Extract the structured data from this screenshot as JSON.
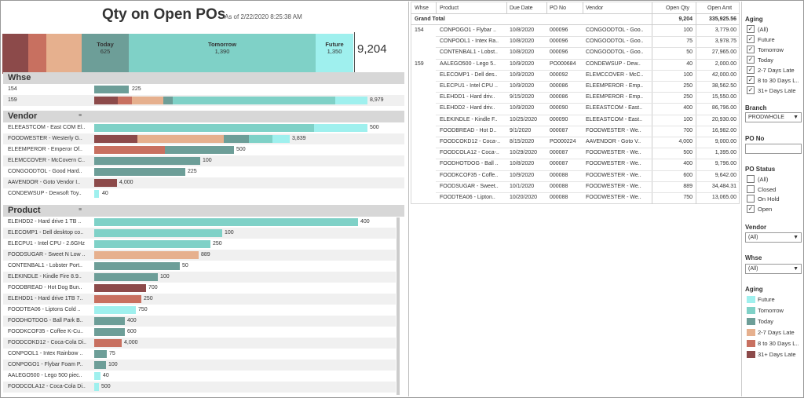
{
  "header": {
    "title": "Qty on Open POs",
    "as_of": "As of 2/22/2020 8:25:38 AM",
    "total": "9,204"
  },
  "aging_bar": [
    {
      "key": "31+",
      "color": "#8c4a4a",
      "label": "",
      "value": ""
    },
    {
      "key": "8-30",
      "color": "#c87060",
      "label": "",
      "value": ""
    },
    {
      "key": "2-7",
      "color": "#e6b08e",
      "label": "",
      "value": ""
    },
    {
      "key": "today",
      "color": "#6d9e98",
      "label": "Today",
      "value": "625"
    },
    {
      "key": "tomorrow",
      "color": "#7fd1c7",
      "label": "Tomorrow",
      "value": "1,390"
    },
    {
      "key": "future",
      "color": "#9ff0ee",
      "label": "Future",
      "value": "1,350"
    }
  ],
  "whse": {
    "title": "Whse",
    "rows": [
      {
        "name": "154",
        "value": "225"
      },
      {
        "name": "159",
        "value": "8,979"
      }
    ]
  },
  "vendor": {
    "title": "Vendor",
    "rows": [
      {
        "name": "ELEEASTCOM - East COM El..",
        "value": "500"
      },
      {
        "name": "FOODWESTER - Westerly G..",
        "value": "3,839"
      },
      {
        "name": "ELEEMPEROR - Emperor Of..",
        "value": "500"
      },
      {
        "name": "ELEMCCOVER - McCovern C..",
        "value": "100"
      },
      {
        "name": "CONGOODTOL - Good Hard..",
        "value": "225"
      },
      {
        "name": "AAVENDOR - Goto Vendor I..",
        "value": "4,000"
      },
      {
        "name": "CONDEWSUP - Dewsoft Toy..",
        "value": "40"
      }
    ]
  },
  "product": {
    "title": "Product",
    "rows": [
      {
        "name": "ELEHDD2 - Hard drive 1 TB ..",
        "value": "400"
      },
      {
        "name": "ELECOMP1 - Dell desktop co..",
        "value": "100"
      },
      {
        "name": "ELECPU1 - Intel CPU - 2.6GHz",
        "value": "250"
      },
      {
        "name": "FOODSUGAR - Sweet N Low ..",
        "value": "889"
      },
      {
        "name": "CONTENBAL1 - Lobster Port..",
        "value": "50"
      },
      {
        "name": "ELEKINDLE - Kindle Fire 8.9..",
        "value": "100"
      },
      {
        "name": "FOODBREAD - Hot Dog Bun..",
        "value": "700"
      },
      {
        "name": "ELEHDD1 - Hard drive 1TB 7..",
        "value": "250"
      },
      {
        "name": "FOODTEA06 - Liptons Cold ..",
        "value": "750"
      },
      {
        "name": "FOODHOTDOG - Ball Park B..",
        "value": "400"
      },
      {
        "name": "FOODKCOF35 - Coffee K-Cu..",
        "value": "600"
      },
      {
        "name": "FOODCOKD12 - Coca-Cola Di..",
        "value": "4,000"
      },
      {
        "name": "CONPOOL1 - Intex Rainbow ..",
        "value": "75"
      },
      {
        "name": "CONPOGO1 - Flybar Foam P..",
        "value": "100"
      },
      {
        "name": "AALEGO500 - Lego 500 piec..",
        "value": "40"
      },
      {
        "name": "FOODCOLA12 - Coca-Cola Di..",
        "value": "500"
      }
    ]
  },
  "table": {
    "headers": {
      "whse": "Whse",
      "product": "Product",
      "due": "Due Date",
      "po": "PO  No",
      "vendor": "Vendor",
      "qty": "Open Qty",
      "amt": "Open Amt"
    },
    "grand": {
      "label": "Grand Total",
      "qty": "9,204",
      "amt": "335,925.56"
    },
    "rows": [
      {
        "whse": "154",
        "product": "CONPOGO1 - Flybar ..",
        "due": "10/8/2020",
        "po": "000096",
        "vendor": "CONGOODTOL - Goo..",
        "qty": "100",
        "amt": "3,779.00"
      },
      {
        "whse": "",
        "product": "CONPOOL1 - Intex Ra..",
        "due": "10/8/2020",
        "po": "000096",
        "vendor": "CONGOODTOL - Goo..",
        "qty": "75",
        "amt": "3,978.75"
      },
      {
        "whse": "",
        "product": "CONTENBAL1 - Lobst..",
        "due": "10/8/2020",
        "po": "000096",
        "vendor": "CONGOODTOL - Goo..",
        "qty": "50",
        "amt": "27,965.00"
      },
      {
        "whse": "159",
        "product": "AALEGO500 - Lego 5..",
        "due": "10/9/2020",
        "po": "PO000684",
        "vendor": "CONDEWSUP - Dew..",
        "qty": "40",
        "amt": "2,000.00"
      },
      {
        "whse": "",
        "product": "ELECOMP1 - Dell des..",
        "due": "10/9/2020",
        "po": "000092",
        "vendor": "ELEMCCOVER - McC..",
        "qty": "100",
        "amt": "42,000.00"
      },
      {
        "whse": "",
        "product": "ELECPU1 - Intel CPU ..",
        "due": "10/9/2020",
        "po": "000086",
        "vendor": "ELEEMPEROR - Emp..",
        "qty": "250",
        "amt": "38,562.50"
      },
      {
        "whse": "",
        "product": "ELEHDD1 - Hard driv..",
        "due": "9/15/2020",
        "po": "000086",
        "vendor": "ELEEMPEROR - Emp..",
        "qty": "250",
        "amt": "15,550.00"
      },
      {
        "whse": "",
        "product": "ELEHDD2 - Hard driv..",
        "due": "10/9/2020",
        "po": "000090",
        "vendor": "ELEEASTCOM - East..",
        "qty": "400",
        "amt": "86,796.00"
      },
      {
        "whse": "",
        "product": "ELEKINDLE - Kindle F..",
        "due": "10/25/2020",
        "po": "000090",
        "vendor": "ELEEASTCOM - East..",
        "qty": "100",
        "amt": "20,930.00"
      },
      {
        "whse": "",
        "product": "FOODBREAD - Hot D..",
        "due": "9/1/2020",
        "po": "000087",
        "vendor": "FOODWESTER - We..",
        "qty": "700",
        "amt": "16,982.00"
      },
      {
        "whse": "",
        "product": "FOODCOKD12 - Coca-..",
        "due": "8/15/2020",
        "po": "PO000224",
        "vendor": "AAVENDOR - Goto V..",
        "qty": "4,000",
        "amt": "9,000.00"
      },
      {
        "whse": "",
        "product": "FOODCOLA12 - Coca-..",
        "due": "10/29/2020",
        "po": "000087",
        "vendor": "FOODWESTER - We..",
        "qty": "500",
        "amt": "1,395.00"
      },
      {
        "whse": "",
        "product": "FOODHOTDOG - Ball ..",
        "due": "10/8/2020",
        "po": "000087",
        "vendor": "FOODWESTER - We..",
        "qty": "400",
        "amt": "9,796.00"
      },
      {
        "whse": "",
        "product": "FOODKCOF35 - Coffe..",
        "due": "10/9/2020",
        "po": "000088",
        "vendor": "FOODWESTER - We..",
        "qty": "600",
        "amt": "9,642.00"
      },
      {
        "whse": "",
        "product": "FOODSUGAR - Sweet..",
        "due": "10/1/2020",
        "po": "000088",
        "vendor": "FOODWESTER - We..",
        "qty": "889",
        "amt": "34,484.31"
      },
      {
        "whse": "",
        "product": "FOODTEA06 - Lipton..",
        "due": "10/20/2020",
        "po": "000088",
        "vendor": "FOODWESTER - We..",
        "qty": "750",
        "amt": "13,065.00"
      }
    ]
  },
  "filters": {
    "aging_title": "Aging",
    "aging_items": [
      {
        "label": "(All)",
        "checked": "✓"
      },
      {
        "label": "Future",
        "checked": "✓"
      },
      {
        "label": "Tomorrow",
        "checked": "✓"
      },
      {
        "label": "Today",
        "checked": "✓"
      },
      {
        "label": "2-7 Days Late",
        "checked": "✓"
      },
      {
        "label": "8 to 30 Days L..",
        "checked": "✓"
      },
      {
        "label": "31+ Days Late",
        "checked": "✓"
      }
    ],
    "branch_title": "Branch",
    "branch_value": "PRODWHOLE",
    "pono_title": "PO  No",
    "pono_value": "",
    "status_title": "PO Status",
    "status_items": [
      {
        "label": "(All)",
        "checked": ""
      },
      {
        "label": "Closed",
        "checked": ""
      },
      {
        "label": "On Hold",
        "checked": ""
      },
      {
        "label": "Open",
        "checked": "✓"
      }
    ],
    "vendor_title": "Vendor",
    "vendor_value": "(All)",
    "whse_title": "Whse",
    "whse_value": "(All)",
    "legend_title": "Aging",
    "legend": [
      {
        "label": "Future",
        "color": "#9ff0ee"
      },
      {
        "label": "Tomorrow",
        "color": "#7fd1c7"
      },
      {
        "label": "Today",
        "color": "#6d9e98"
      },
      {
        "label": "2-7 Days Late",
        "color": "#e6b08e"
      },
      {
        "label": "8 to 30 Days L..",
        "color": "#c87060"
      },
      {
        "label": "31+ Days Late",
        "color": "#8c4a4a"
      }
    ],
    "dropdown_arrow": "▼"
  }
}
